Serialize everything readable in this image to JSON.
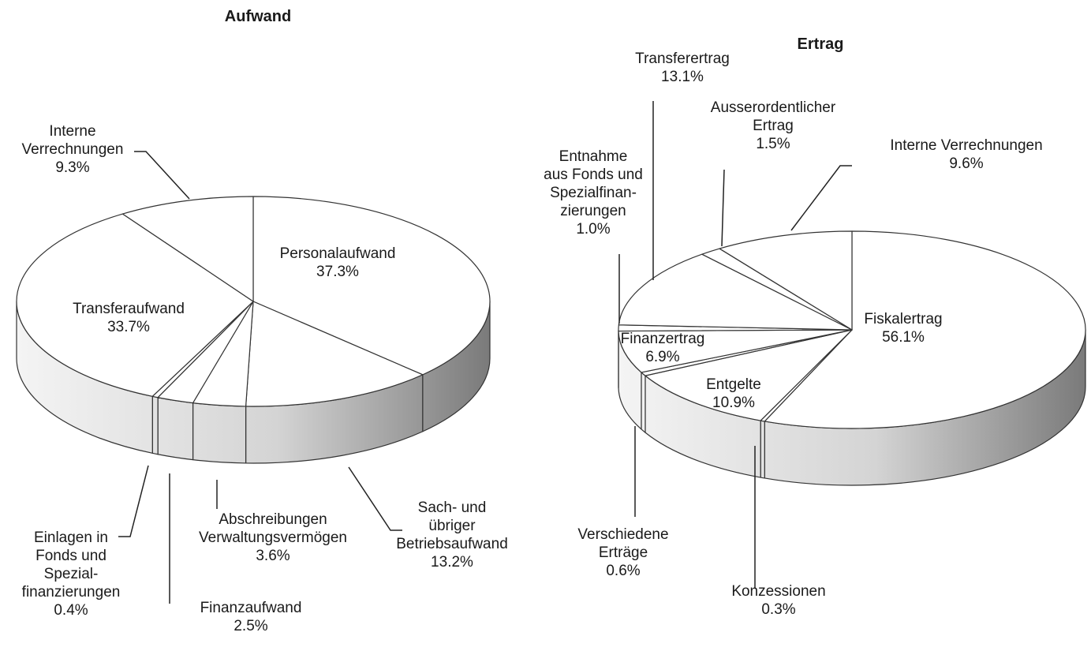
{
  "chart_data": [
    {
      "type": "pie",
      "title": "Aufwand",
      "categories": [
        "Personalaufwand",
        "Sach- und\nübriger\nBetriebsaufwand",
        "Abschreibungen\nVerwaltungsvermögen",
        "Finanzaufwand",
        "Einlagen in\nFonds und\nSpezial-\nfinanzierungen",
        "Transferaufwand",
        "Interne\nVerrechnungen"
      ],
      "values": [
        37.3,
        13.2,
        3.6,
        2.5,
        0.4,
        33.7,
        9.3
      ],
      "value_labels": [
        "37.3%",
        "13.2%",
        "3.6%",
        "2.5%",
        "0.4%",
        "33.7%",
        "9.3%"
      ]
    },
    {
      "type": "pie",
      "title": "Ertrag",
      "categories": [
        "Fiskalertrag",
        "Konzessionen",
        "Entgelte",
        "Verschiedene\nErträge",
        "Finanzertrag",
        "Entnahme\naus Fonds und\nSpezialfinan-\nzierungen",
        "Transferertrag",
        "Ausserordentlicher\nErtrag",
        "Interne Verrechnungen"
      ],
      "values": [
        56.1,
        0.3,
        10.9,
        0.6,
        6.9,
        1.0,
        13.1,
        1.5,
        9.6
      ],
      "value_labels": [
        "56.1%",
        "0.3%",
        "10.9%",
        "0.6%",
        "6.9%",
        "1.0%",
        "13.1%",
        "1.5%",
        "9.6%"
      ]
    }
  ]
}
